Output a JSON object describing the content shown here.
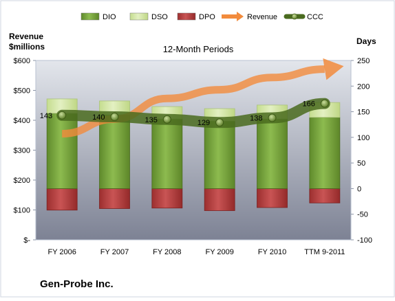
{
  "chart_data": {
    "type": "bar",
    "title": "12-Month Periods",
    "left_axis_title_line1": "Revenue",
    "left_axis_title_line2": "$millions",
    "right_axis_title": "Days",
    "company": "Gen-Probe Inc.",
    "categories": [
      "FY 2006",
      "FY 2007",
      "FY 2008",
      "FY 2009",
      "FY 2010",
      "TTM 9-2011"
    ],
    "left_axis": {
      "ylim": [
        0,
        600
      ],
      "ticks": [
        0,
        100,
        200,
        300,
        400,
        500,
        600
      ],
      "tick_labels": [
        "$-",
        "$100",
        "$200",
        "$300",
        "$400",
        "$500",
        "$600"
      ]
    },
    "right_axis": {
      "ylim": [
        -100,
        250
      ],
      "ticks": [
        -100,
        -50,
        0,
        50,
        100,
        150,
        200,
        250
      ],
      "tick_labels": [
        "-100",
        "-50",
        "0",
        "50",
        "100",
        "150",
        "200",
        "250"
      ]
    },
    "legend": {
      "placement": "top",
      "items": [
        "DIO",
        "DSO",
        "DPO",
        "Revenue",
        "CCC"
      ]
    },
    "series": [
      {
        "name": "DIO",
        "axis": "right",
        "values": [
          147,
          144,
          136,
          132,
          136,
          139
        ]
      },
      {
        "name": "DSO",
        "axis": "right",
        "values": [
          28,
          27,
          24,
          24,
          27,
          29
        ]
      },
      {
        "name": "DPO",
        "axis": "right",
        "values": [
          -42,
          -39,
          -38,
          -43,
          -37,
          -28
        ]
      },
      {
        "name": "Revenue",
        "axis": "left",
        "values": [
          355,
          404,
          473,
          502,
          543,
          571
        ]
      },
      {
        "name": "CCC",
        "axis": "right",
        "values": [
          143,
          140,
          135,
          129,
          138,
          166
        ]
      }
    ],
    "ccc_labels": [
      "143",
      "140",
      "135",
      "129",
      "138",
      "166"
    ],
    "colors": {
      "DIO": "#76a33d",
      "DSO": "#d6e8a8",
      "DPO": "#b83c3c",
      "Revenue": "#f28b3c",
      "CCC": "#4a6b1f",
      "plot_top": "#e3e6ec",
      "plot_bottom": "#7d8294",
      "frame": "#b9c2d2"
    },
    "grid": false
  }
}
